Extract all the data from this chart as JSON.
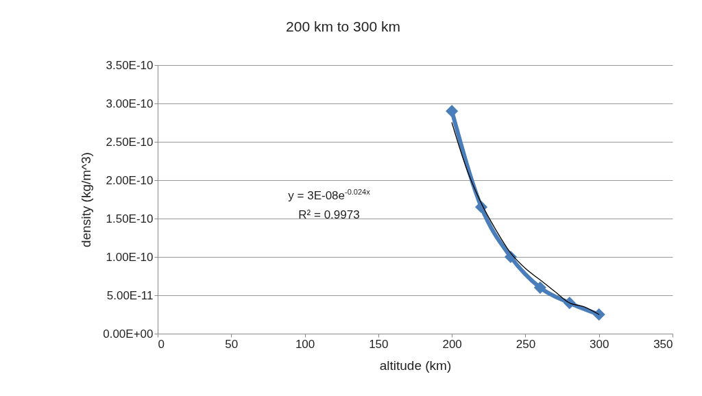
{
  "chart_data": {
    "type": "line",
    "title": "200 km to 300 km",
    "xlabel": "altitude (km)",
    "ylabel": "density (kg/m^3)",
    "x": [
      200,
      220,
      240,
      260,
      280,
      300
    ],
    "series": [
      {
        "color": "#4a7ebb",
        "values": [
          2.9e-10,
          1.65e-10,
          1e-10,
          6e-11,
          4e-11,
          2.5e-11
        ]
      },
      {
        "type": "line",
        "color": "#000000",
        "marker": "none",
        "x": [
          200,
          210,
          220,
          230,
          240,
          250,
          260,
          270,
          280,
          290,
          300
        ],
        "values": [
          2.75e-10,
          2.15e-10,
          1.7e-10,
          1.35e-10,
          1.05e-10,
          8.5e-11,
          7e-11,
          5.5e-11,
          4e-11,
          3.5e-11,
          2.5e-11
        ]
      }
    ],
    "annotations": [
      "y = 3E-08e$^{-0.024x}$",
      "R² = 0.9973"
    ],
    "xlim": [
      0,
      350
    ],
    "xticks": [
      0,
      50,
      100,
      150,
      200,
      250,
      300,
      350
    ],
    "ylim": [
      0,
      3.5e-10
    ],
    "yticks": [
      {
        "value": 0,
        "label": "0.00E+00"
      },
      {
        "value": 5e-11,
        "label": "5.00E-11"
      },
      {
        "value": 1e-10,
        "label": "1.00E-10"
      },
      {
        "value": 1.5e-10,
        "label": "1.50E-10"
      },
      {
        "value": 2e-10,
        "label": "2.00E-10"
      },
      {
        "value": 2.5e-10,
        "label": "2.50E-10"
      },
      {
        "value": 3e-10,
        "label": "3.00E-10"
      },
      {
        "value": 3.5e-10,
        "label": "3.50E-10"
      }
    ],
    "grid": "y",
    "marker": "diamond",
    "line_style": "solid"
  }
}
